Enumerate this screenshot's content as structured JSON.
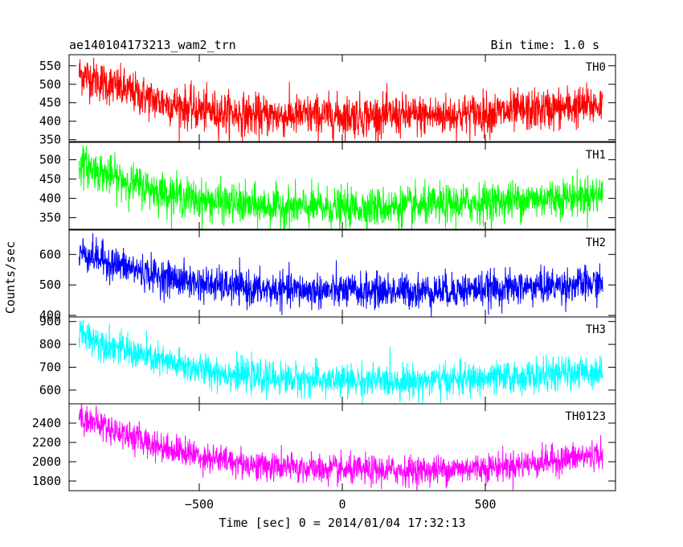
{
  "chart_data": {
    "type": "line",
    "title_left": "ae140104173213_wam2_trn",
    "title_right": "Bin time: 1.0 s",
    "xlabel": "Time [sec] 0 = 2014/01/04 17:32:13",
    "ylabel": "Counts/sec",
    "xlim": [
      -955,
      955
    ],
    "xticks": [
      -500,
      0,
      500
    ],
    "x_range": [
      -920,
      910
    ],
    "panels": [
      {
        "name": "TH0",
        "color": "#ff0000",
        "ylim": [
          345,
          580
        ],
        "yticks": [
          350,
          400,
          450,
          500,
          550
        ],
        "trend": {
          "x": [
            -920,
            -800,
            -650,
            -500,
            -300,
            0,
            300,
            600,
            910
          ],
          "y": [
            530,
            495,
            455,
            430,
            415,
            415,
            415,
            425,
            445
          ]
        },
        "noise": 28
      },
      {
        "name": "TH1",
        "color": "#00ff00",
        "ylim": [
          320,
          545
        ],
        "yticks": [
          350,
          400,
          450,
          500
        ],
        "trend": {
          "x": [
            -920,
            -800,
            -650,
            -500,
            -300,
            0,
            300,
            600,
            910
          ],
          "y": [
            490,
            455,
            420,
            395,
            380,
            375,
            380,
            395,
            410
          ]
        },
        "noise": 25
      },
      {
        "name": "TH2",
        "color": "#0000ff",
        "ylim": [
          395,
          680
        ],
        "yticks": [
          400,
          500,
          600
        ],
        "trend": {
          "x": [
            -920,
            -800,
            -650,
            -500,
            -300,
            0,
            300,
            600,
            910
          ],
          "y": [
            610,
            570,
            530,
            505,
            485,
            480,
            480,
            490,
            505
          ]
        },
        "noise": 28
      },
      {
        "name": "TH3",
        "color": "#00ffff",
        "ylim": [
          540,
          920
        ],
        "yticks": [
          600,
          700,
          800,
          900
        ],
        "trend": {
          "x": [
            -920,
            -800,
            -650,
            -500,
            -300,
            0,
            300,
            600,
            910
          ],
          "y": [
            850,
            790,
            730,
            690,
            655,
            640,
            640,
            655,
            685
          ]
        },
        "noise": 35
      },
      {
        "name": "TH0123",
        "color": "#ff00ff",
        "ylim": [
          1700,
          2600
        ],
        "yticks": [
          1800,
          2000,
          2200,
          2400
        ],
        "trend": {
          "x": [
            -920,
            -800,
            -650,
            -500,
            -300,
            0,
            300,
            600,
            910
          ],
          "y": [
            2470,
            2330,
            2170,
            2060,
            1960,
            1910,
            1910,
            1960,
            2080
          ]
        },
        "noise": 75
      }
    ]
  }
}
